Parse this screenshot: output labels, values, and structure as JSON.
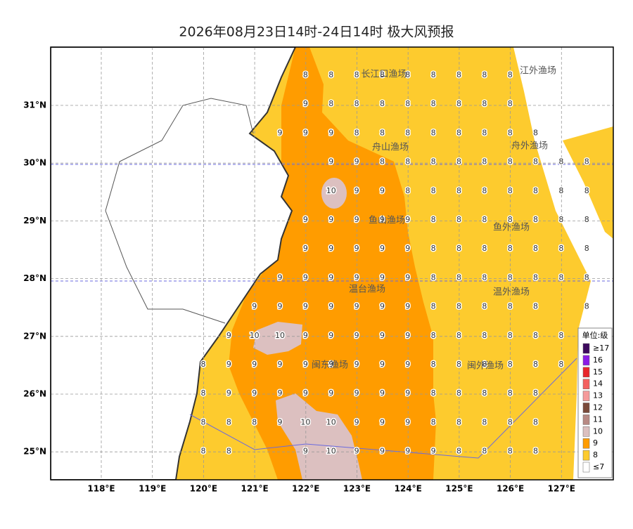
{
  "title": "2026年08月23日14时-24日14时 极大风预报",
  "lat_labels": [
    "31°N",
    "30°N",
    "29°N",
    "28°N",
    "27°N",
    "26°N",
    "25°N"
  ],
  "lon_labels": [
    "118°E",
    "119°E",
    "120°E",
    "121°E",
    "122°E",
    "123°E",
    "124°E",
    "125°E",
    "126°E",
    "127°E"
  ],
  "zones": [
    "长江口渔场",
    "江外渔场",
    "舟山渔场",
    "舟外渔场",
    "鱼山渔场",
    "鱼外渔场",
    "温台渔场",
    "温外渔场",
    "闽东渔场",
    "闽外渔场"
  ],
  "grid": [
    [
      null,
      null,
      null,
      null,
      8,
      8,
      8,
      8,
      8,
      8,
      8,
      8,
      8,
      null,
      null,
      null
    ],
    [
      null,
      null,
      null,
      null,
      9,
      8,
      8,
      8,
      8,
      8,
      8,
      8,
      8,
      null,
      null,
      null
    ],
    [
      null,
      null,
      null,
      9,
      9,
      9,
      8,
      8,
      8,
      8,
      8,
      8,
      8,
      8,
      null,
      null
    ],
    [
      null,
      null,
      null,
      null,
      null,
      9,
      9,
      8,
      8,
      8,
      8,
      8,
      8,
      8,
      8,
      8
    ],
    [
      null,
      null,
      null,
      null,
      null,
      10,
      9,
      9,
      8,
      8,
      8,
      8,
      8,
      8,
      8,
      8
    ],
    [
      null,
      null,
      null,
      null,
      9,
      9,
      9,
      9,
      9,
      8,
      8,
      8,
      8,
      8,
      8,
      8
    ],
    [
      null,
      null,
      null,
      null,
      9,
      9,
      9,
      9,
      9,
      8,
      8,
      8,
      8,
      8,
      8,
      8
    ],
    [
      null,
      null,
      null,
      9,
      9,
      9,
      9,
      9,
      9,
      8,
      8,
      8,
      8,
      8,
      8,
      8
    ],
    [
      null,
      null,
      9,
      9,
      9,
      9,
      9,
      9,
      9,
      8,
      8,
      8,
      8,
      8,
      null,
      8
    ],
    [
      null,
      9,
      10,
      10,
      9,
      9,
      9,
      9,
      9,
      8,
      8,
      8,
      8,
      8,
      8,
      null
    ],
    [
      8,
      9,
      9,
      9,
      9,
      9,
      9,
      9,
      9,
      8,
      8,
      8,
      8,
      8,
      8,
      null
    ],
    [
      8,
      9,
      9,
      9,
      9,
      9,
      9,
      9,
      9,
      8,
      8,
      8,
      8,
      8,
      null,
      null
    ],
    [
      8,
      8,
      8,
      9,
      10,
      10,
      9,
      9,
      9,
      8,
      8,
      8,
      8,
      8,
      null,
      null
    ],
    [
      8,
      8,
      null,
      null,
      9,
      10,
      9,
      9,
      9,
      9,
      8,
      8,
      8,
      8,
      null,
      null
    ]
  ],
  "legend": {
    "title": "单位:级",
    "items": [
      {
        "label": "≥17",
        "color": "#3d0a5e"
      },
      {
        "label": "16",
        "color": "#8a1be6"
      },
      {
        "label": "15",
        "color": "#e8262b"
      },
      {
        "label": "14",
        "color": "#f4605f"
      },
      {
        "label": "13",
        "color": "#f59a9a"
      },
      {
        "label": "12",
        "color": "#7a4a3a"
      },
      {
        "label": "11",
        "color": "#b88a84"
      },
      {
        "label": "10",
        "color": "#dcc0c0"
      },
      {
        "label": "9",
        "color": "#ff9c00"
      },
      {
        "label": "8",
        "color": "#fdcb2e"
      },
      {
        "label": "≤7",
        "color": "#ffffff"
      }
    ]
  }
}
